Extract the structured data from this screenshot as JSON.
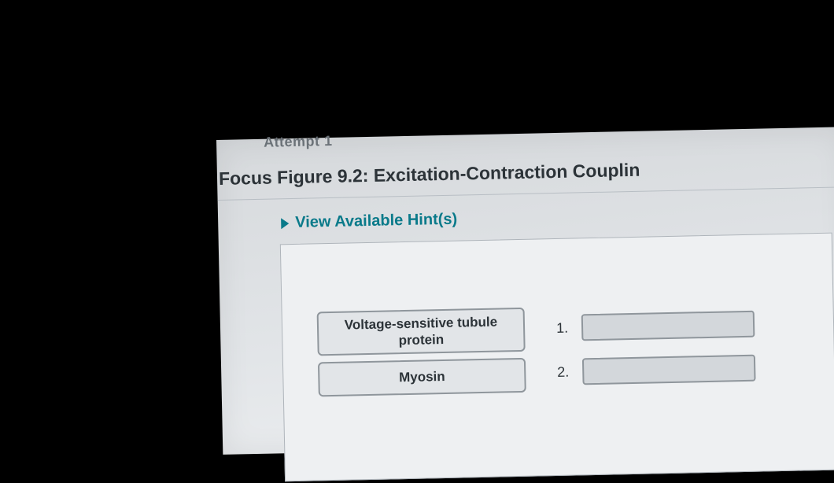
{
  "header": {
    "attempt_label": "Attempt 1",
    "title": "Focus Figure 9.2: Excitation-Contraction Couplin"
  },
  "hints": {
    "toggle_label": "View Available Hint(s)"
  },
  "terms": {
    "term1": "Voltage-sensitive tubule protein",
    "term2": "Myosin"
  },
  "dropzones": [
    {
      "number": "1."
    },
    {
      "number": "2."
    }
  ],
  "colors": {
    "page_bg": "#000000",
    "panel_bg": "#e2e5e8",
    "accent": "#0a7a8a",
    "border": "#8f969c",
    "text": "#2c3338"
  }
}
